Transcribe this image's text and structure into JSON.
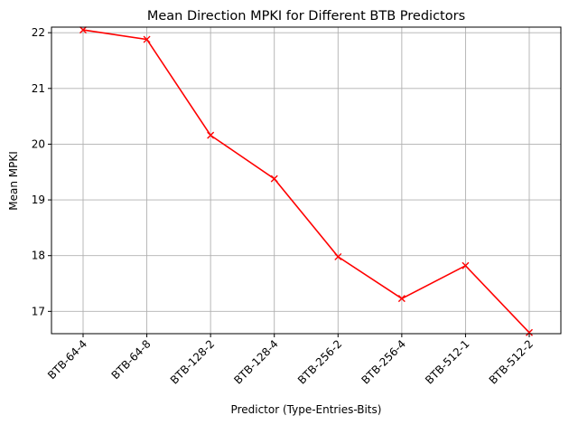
{
  "chart_data": {
    "type": "line",
    "title": "Mean Direction MPKI for Different BTB Predictors",
    "xlabel": "Predictor (Type-Entries-Bits)",
    "ylabel": "Mean MPKI",
    "categories": [
      "BTB-64-4",
      "BTB-64-8",
      "BTB-128-2",
      "BTB-128-4",
      "BTB-256-2",
      "BTB-256-4",
      "BTB-512-1",
      "BTB-512-2"
    ],
    "series": [
      {
        "values": [
          22.05,
          21.88,
          20.16,
          19.38,
          17.98,
          17.23,
          17.82,
          16.62
        ],
        "color": "#ff0000",
        "marker": "x"
      }
    ],
    "ylim": [
      16.6,
      22.1
    ],
    "yticks": [
      17,
      18,
      19,
      20,
      21,
      22
    ],
    "grid": true,
    "legend": "none",
    "xtick_rotation": 45
  }
}
